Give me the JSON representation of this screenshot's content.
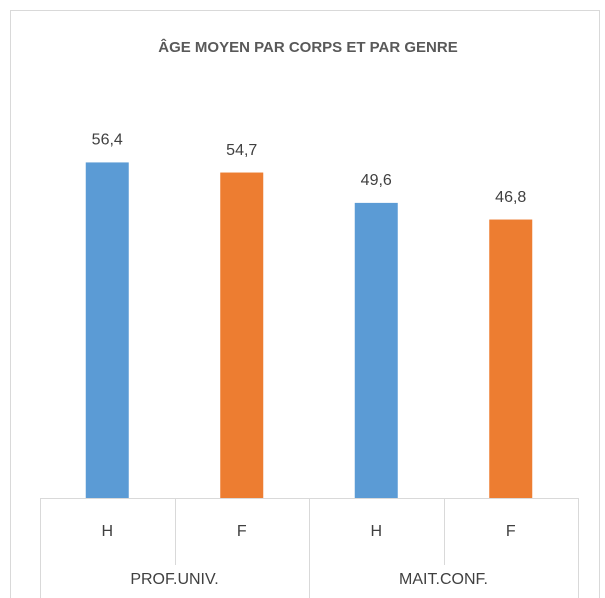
{
  "chart_data": {
    "type": "bar",
    "title": "ÂGE MOYEN PAR CORPS ET PAR GENRE",
    "categories": [
      "H",
      "F",
      "H",
      "F"
    ],
    "groups": [
      "PROF.UNIV.",
      "MAIT.CONF."
    ],
    "values": [
      56.4,
      54.7,
      49.6,
      46.8
    ],
    "value_labels": [
      "56,4",
      "54,7",
      "49,6",
      "46,8"
    ],
    "colors": [
      "#5b9bd5",
      "#ed7d31",
      "#5b9bd5",
      "#ed7d31"
    ],
    "ylim": [
      0,
      60
    ]
  }
}
